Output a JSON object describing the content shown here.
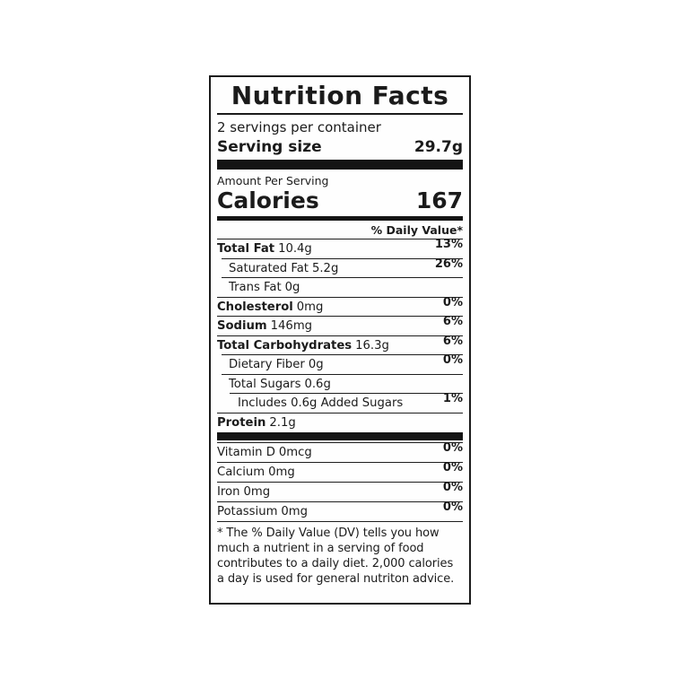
{
  "label": {
    "title": "Nutrition Facts",
    "servings_per_container": "2 servings per container",
    "serving_size_label": "Serving size",
    "serving_size_value": "29.7g",
    "amount_per_serving": "Amount Per Serving",
    "calories_label": "Calories",
    "calories_value": "167",
    "daily_value_header": "% Daily Value*",
    "rows": [
      {
        "name": "Total Fat",
        "amount": "10.4g",
        "dv": "13%"
      },
      {
        "name": "Saturated Fat",
        "amount": "5.2g",
        "dv": "26%"
      },
      {
        "name": "Trans Fat",
        "amount": "0g",
        "dv": ""
      },
      {
        "name": "Cholesterol",
        "amount": "0mg",
        "dv": "0%"
      },
      {
        "name": "Sodium",
        "amount": "146mg",
        "dv": "6%"
      },
      {
        "name": "Total Carbohydrates",
        "amount": "16.3g",
        "dv": "6%"
      },
      {
        "name": "Dietary Fiber",
        "amount": "0g",
        "dv": "0%"
      },
      {
        "name": "Total Sugars",
        "amount": "0.6g",
        "dv": ""
      },
      {
        "name": "Includes 0.6g Added Sugars",
        "amount": "",
        "dv": "1%"
      },
      {
        "name": "Protein",
        "amount": "2.1g",
        "dv": ""
      }
    ],
    "vitamins": [
      {
        "name": "Vitamin D",
        "amount": "0mcg",
        "dv": "0%"
      },
      {
        "name": "Calcium",
        "amount": "0mg",
        "dv": "0%"
      },
      {
        "name": "Iron",
        "amount": "0mg",
        "dv": "0%"
      },
      {
        "name": "Potassium",
        "amount": "0mg",
        "dv": "0%"
      }
    ],
    "footnote": "* The % Daily Value (DV) tells you how much a nutrient in a serving of food contributes to a daily diet. 2,000 calories a day is used for general nutriton advice.",
    "colors": {
      "ink": "#1b1b1b",
      "background": "#ffffff"
    }
  }
}
